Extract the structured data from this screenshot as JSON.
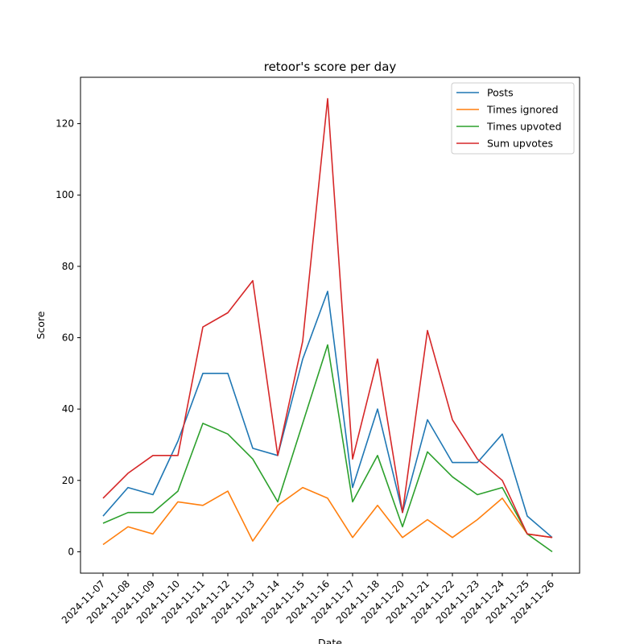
{
  "chart_data": {
    "type": "line",
    "title": "retoor's score per day",
    "xlabel": "Date",
    "ylabel": "Score",
    "categories": [
      "2024-11-07",
      "2024-11-08",
      "2024-11-09",
      "2024-11-10",
      "2024-11-11",
      "2024-11-12",
      "2024-11-13",
      "2024-11-14",
      "2024-11-15",
      "2024-11-16",
      "2024-11-17",
      "2024-11-18",
      "2024-11-20",
      "2024-11-21",
      "2024-11-22",
      "2024-11-23",
      "2024-11-24",
      "2024-11-25",
      "2024-11-26"
    ],
    "ylim": [
      -6,
      133
    ],
    "yticks": [
      0,
      20,
      40,
      60,
      80,
      100,
      120
    ],
    "grid": false,
    "legend": "top-right",
    "series": [
      {
        "name": "Posts",
        "color": "#1f77b4",
        "values": [
          10,
          18,
          16,
          31,
          50,
          50,
          29,
          27,
          54,
          73,
          18,
          40,
          11,
          37,
          25,
          25,
          33,
          10,
          4
        ]
      },
      {
        "name": "Times ignored",
        "color": "#ff7f0e",
        "values": [
          2,
          7,
          5,
          14,
          13,
          17,
          3,
          13,
          18,
          15,
          4,
          13,
          4,
          9,
          4,
          9,
          15,
          5,
          4
        ]
      },
      {
        "name": "Times upvoted",
        "color": "#2ca02c",
        "values": [
          8,
          11,
          11,
          17,
          36,
          33,
          26,
          14,
          36,
          58,
          14,
          27,
          7,
          28,
          21,
          16,
          18,
          5,
          0
        ]
      },
      {
        "name": "Sum upvotes",
        "color": "#d62728",
        "values": [
          15,
          22,
          27,
          27,
          63,
          67,
          76,
          27,
          59,
          127,
          26,
          54,
          11,
          62,
          37,
          26,
          20,
          5,
          4
        ]
      }
    ]
  }
}
